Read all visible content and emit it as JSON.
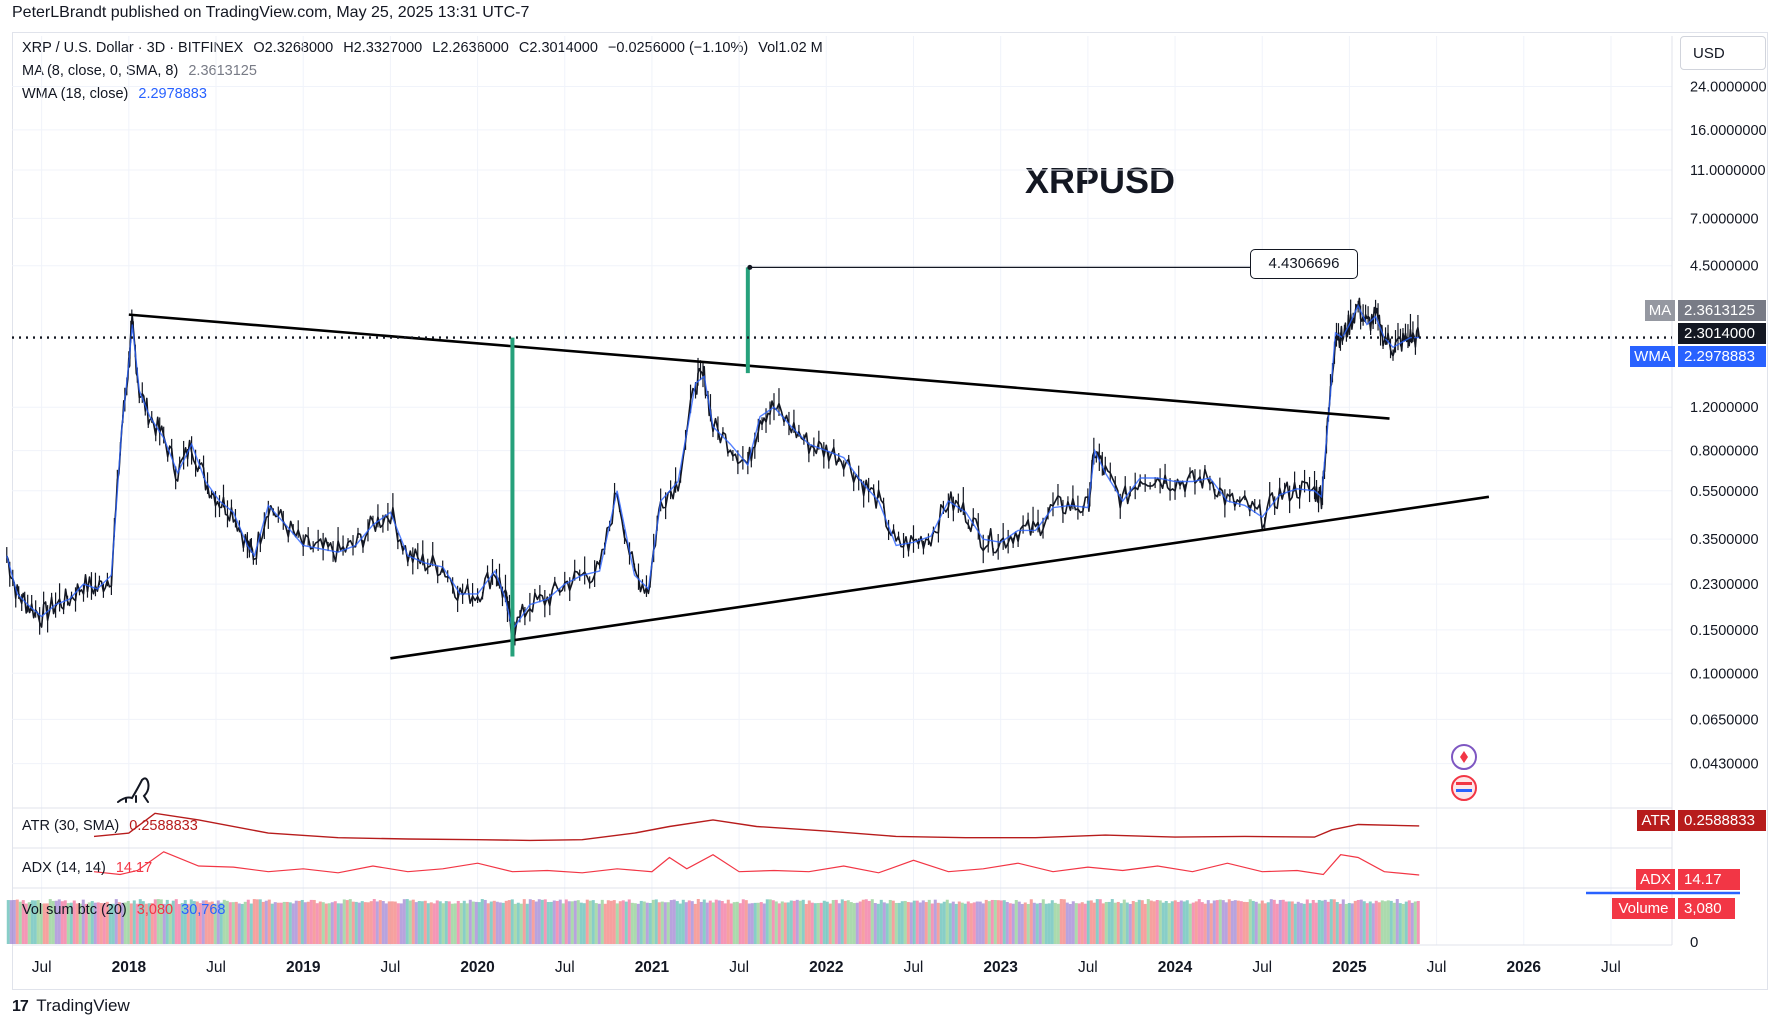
{
  "publisher": "PeterLBrandt published on TradingView.com, May 25, 2025 13:31 UTC-7",
  "legend": {
    "symbol": "XRP / U.S. Dollar · 3D · BITFINEX",
    "open": "O2.3268000",
    "high": "H2.3327000",
    "low": "L2.2636000",
    "close": "C2.3014000",
    "change": "−0.0256000 (−1.10%)",
    "volume": "Vol1.02 M",
    "ma_label": "MA (8, close, 0, SMA, 8)",
    "ma_value": "2.3613125",
    "wma_label": "WMA (18, close)",
    "wma_value": "2.2978883"
  },
  "currency": "USD",
  "target_label": "4.4306696",
  "price_tags": {
    "ma_tag": "MA",
    "ma_value": "2.3613125",
    "last_value": "2.3014000",
    "wma_tag": "WMA",
    "wma_value": "2.2978883",
    "atr_tag": "ATR",
    "atr_value": "0.2588833",
    "adx_tag": "ADX",
    "adx_value": "14.17",
    "volume_tag": "Volume",
    "volume_value": "3,080",
    "volume_zero": "0"
  },
  "indicators": {
    "atr_label": "ATR (30, SMA)",
    "atr_value": "0.2588833",
    "adx_label": "ADX (14, 14)",
    "adx_value": "14.17",
    "vol_label": "Vol sum btc (20)",
    "vol_value_1": "3,080",
    "vol_value_2": "30,768"
  },
  "footer": {
    "logo": "17",
    "brand": "TradingView"
  },
  "colors": {
    "candle": "#131722",
    "wma": "#2962ff",
    "ma": "#787b86",
    "atr": "#b71c1c",
    "adx": "#f23645",
    "measure": "#26a17b",
    "trend": "#000000"
  },
  "chart_data": {
    "type": "line",
    "title": "XRPUSD",
    "scale": "log",
    "price_axis_ticks": [
      "24.0000000",
      "16.0000000",
      "11.0000000",
      "7.0000000",
      "4.5000000",
      "1.2000000",
      "0.8000000",
      "0.5500000",
      "0.3500000",
      "0.2300000",
      "0.1500000",
      "0.1000000",
      "0.0650000",
      "0.0430000"
    ],
    "time_axis_ticks": [
      "Jul",
      "2018",
      "Jul",
      "2019",
      "Jul",
      "2020",
      "Jul",
      "2021",
      "Jul",
      "2022",
      "Jul",
      "2023",
      "Jul",
      "2024",
      "Jul",
      "2025",
      "Jul",
      "2026",
      "Jul"
    ],
    "x_range": [
      2017.33,
      2026.85
    ],
    "y_range": [
      0.033,
      28
    ],
    "price_series": {
      "name": "XRP/USD close (approx.)",
      "x": [
        2017.3,
        2017.36,
        2017.42,
        2017.5,
        2017.58,
        2017.66,
        2017.74,
        2017.82,
        2017.9,
        2017.96,
        2018.0,
        2018.02,
        2018.06,
        2018.12,
        2018.2,
        2018.28,
        2018.36,
        2018.44,
        2018.52,
        2018.6,
        2018.68,
        2018.72,
        2018.8,
        2018.9,
        2019.0,
        2019.1,
        2019.2,
        2019.3,
        2019.4,
        2019.5,
        2019.6,
        2019.7,
        2019.8,
        2019.9,
        2020.0,
        2020.1,
        2020.16,
        2020.2,
        2020.3,
        2020.4,
        2020.5,
        2020.6,
        2020.7,
        2020.8,
        2020.9,
        2020.98,
        2021.05,
        2021.15,
        2021.25,
        2021.3,
        2021.35,
        2021.45,
        2021.55,
        2021.62,
        2021.7,
        2021.8,
        2021.9,
        2022.0,
        2022.1,
        2022.2,
        2022.3,
        2022.4,
        2022.5,
        2022.6,
        2022.7,
        2022.8,
        2022.9,
        2023.0,
        2023.1,
        2023.2,
        2023.3,
        2023.4,
        2023.5,
        2023.54,
        2023.6,
        2023.7,
        2023.8,
        2023.9,
        2024.0,
        2024.1,
        2024.2,
        2024.3,
        2024.4,
        2024.5,
        2024.6,
        2024.7,
        2024.8,
        2024.84,
        2024.88,
        2024.92,
        2024.96,
        2025.0,
        2025.05,
        2025.1,
        2025.15,
        2025.2,
        2025.25,
        2025.3,
        2025.35,
        2025.4
      ],
      "y": [
        0.3,
        0.21,
        0.19,
        0.17,
        0.19,
        0.2,
        0.23,
        0.22,
        0.25,
        1.0,
        1.8,
        2.6,
        1.4,
        1.1,
        0.9,
        0.65,
        0.85,
        0.6,
        0.5,
        0.45,
        0.33,
        0.3,
        0.48,
        0.4,
        0.33,
        0.32,
        0.31,
        0.33,
        0.4,
        0.45,
        0.3,
        0.28,
        0.27,
        0.21,
        0.21,
        0.26,
        0.2,
        0.15,
        0.19,
        0.2,
        0.23,
        0.25,
        0.26,
        0.55,
        0.25,
        0.22,
        0.5,
        0.6,
        1.5,
        1.6,
        1.0,
        0.85,
        0.7,
        1.1,
        1.2,
        1.0,
        0.85,
        0.8,
        0.75,
        0.6,
        0.5,
        0.33,
        0.34,
        0.36,
        0.5,
        0.45,
        0.35,
        0.34,
        0.38,
        0.38,
        0.47,
        0.48,
        0.47,
        0.8,
        0.65,
        0.5,
        0.62,
        0.62,
        0.6,
        0.6,
        0.62,
        0.5,
        0.48,
        0.43,
        0.53,
        0.56,
        0.55,
        0.52,
        1.1,
        2.4,
        2.3,
        2.6,
        3.1,
        2.6,
        2.8,
        2.3,
        2.1,
        2.2,
        2.3,
        2.3
      ]
    },
    "trendlines": [
      {
        "name": "upper-trendline",
        "x": [
          2018.0,
          2025.23
        ],
        "y": [
          2.85,
          1.08
        ]
      },
      {
        "name": "lower-trendline",
        "x": [
          2019.5,
          2025.8
        ],
        "y": [
          0.115,
          0.52
        ]
      }
    ],
    "measured_move": {
      "base_x": 2020.2,
      "base_from": 0.117,
      "base_to": 2.3,
      "projected_x": 2021.55,
      "projected_from": 1.65,
      "projected_to": 4.4306696
    },
    "last_price": 2.3014,
    "atr_series": {
      "x": [
        2017.8,
        2018.0,
        2018.15,
        2018.4,
        2018.8,
        2019.2,
        2019.6,
        2020.0,
        2020.3,
        2020.6,
        2020.9,
        2021.1,
        2021.35,
        2021.6,
        2022.0,
        2022.4,
        2022.8,
        2023.2,
        2023.6,
        2024.0,
        2024.4,
        2024.8,
        2024.9,
        2025.05,
        2025.4
      ],
      "y": [
        0.1,
        0.15,
        0.45,
        0.35,
        0.15,
        0.08,
        0.06,
        0.05,
        0.04,
        0.05,
        0.15,
        0.25,
        0.35,
        0.25,
        0.18,
        0.1,
        0.08,
        0.08,
        0.12,
        0.09,
        0.1,
        0.09,
        0.2,
        0.28,
        0.259
      ]
    },
    "adx_series": {
      "x": [
        2017.8,
        2017.95,
        2018.05,
        2018.2,
        2018.4,
        2018.6,
        2018.8,
        2019.0,
        2019.2,
        2019.4,
        2019.6,
        2019.8,
        2020.0,
        2020.2,
        2020.4,
        2020.6,
        2020.8,
        2021.0,
        2021.1,
        2021.2,
        2021.35,
        2021.5,
        2021.7,
        2021.9,
        2022.1,
        2022.3,
        2022.5,
        2022.7,
        2022.9,
        2023.1,
        2023.3,
        2023.5,
        2023.7,
        2023.9,
        2024.1,
        2024.3,
        2024.5,
        2024.7,
        2024.85,
        2024.95,
        2025.05,
        2025.2,
        2025.4
      ],
      "y": [
        20,
        15,
        22,
        55,
        30,
        28,
        20,
        25,
        18,
        30,
        20,
        25,
        35,
        20,
        22,
        18,
        25,
        20,
        45,
        25,
        50,
        20,
        22,
        20,
        30,
        18,
        40,
        20,
        25,
        35,
        20,
        28,
        22,
        30,
        20,
        35,
        20,
        22,
        15,
        50,
        45,
        20,
        14.17
      ]
    },
    "volume_note": "Vol sum btc (20): 3,080 / 30,768"
  }
}
